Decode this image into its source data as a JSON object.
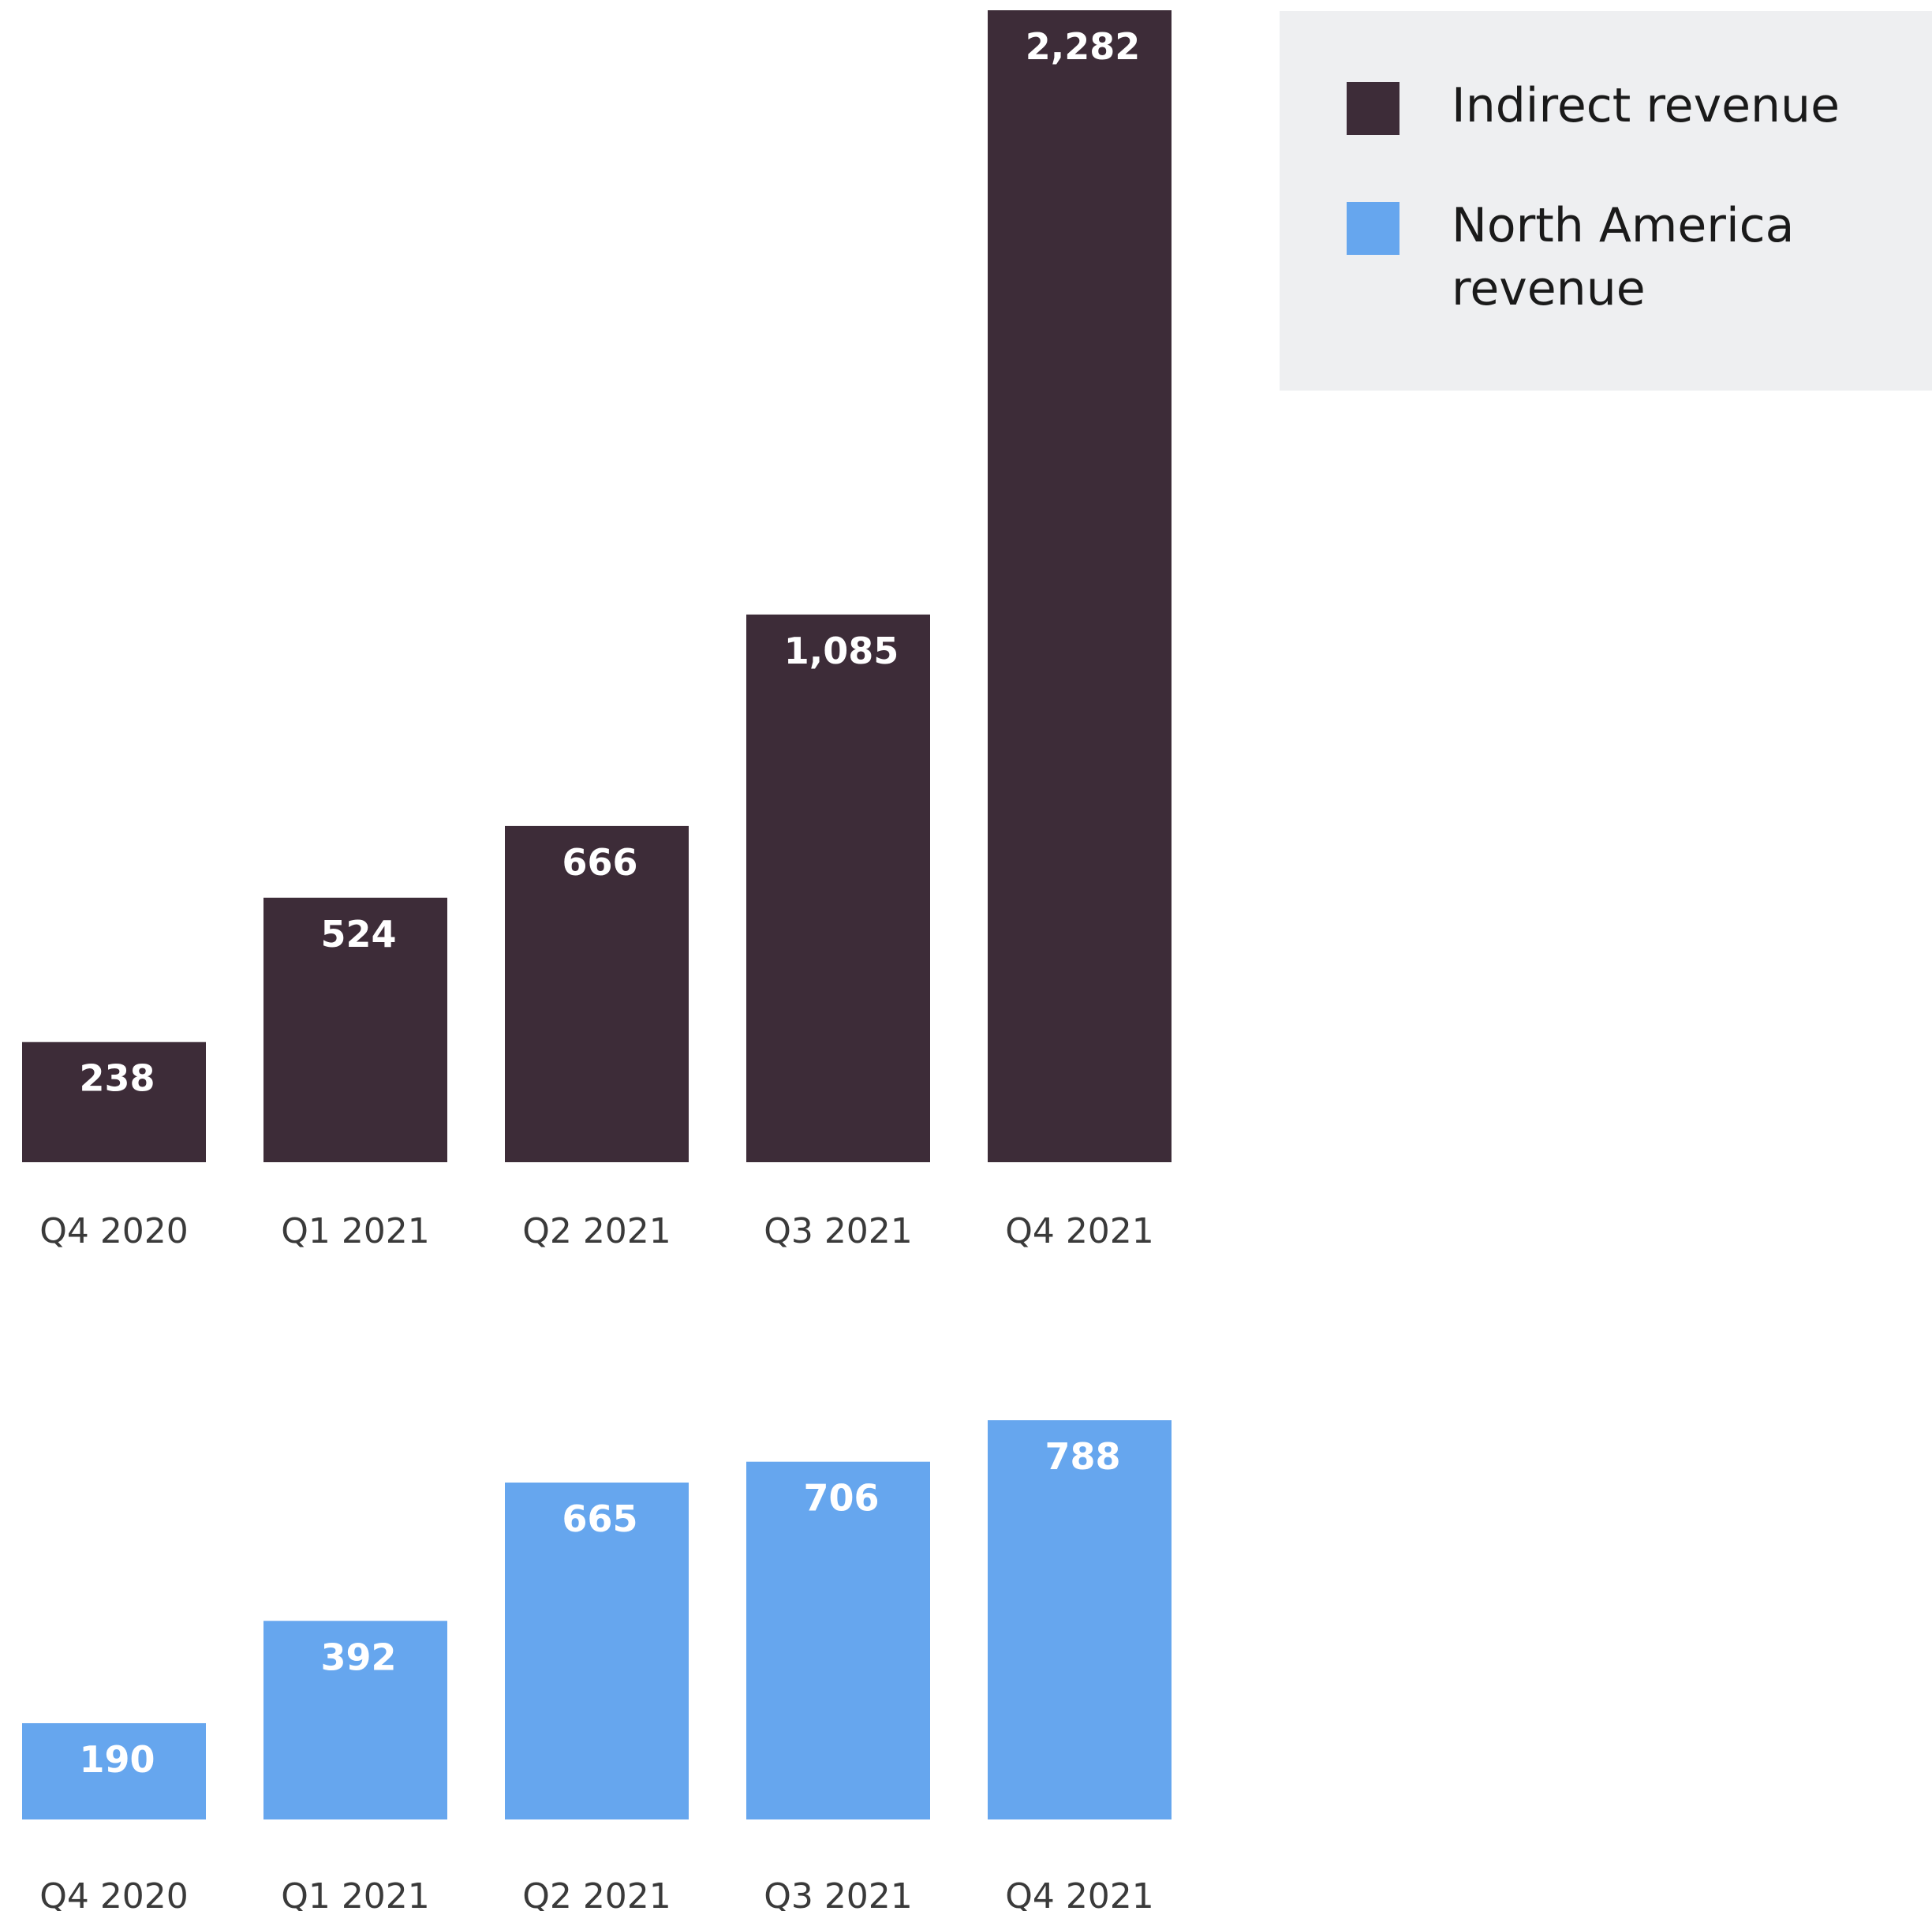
{
  "colors": {
    "indirect": "#3d2c38",
    "north_america": "#66a6ee",
    "legend_bg": "#eeeff1",
    "tick_text": "#3a3a3a",
    "bar_label": "#ffffff"
  },
  "legend": {
    "items": [
      {
        "label": "Indirect revenue",
        "color": "#3d2c38"
      },
      {
        "label": "North America revenue",
        "color": "#66a6ee"
      }
    ]
  },
  "chart_data": [
    {
      "type": "bar",
      "categories": [
        "Q4 2020",
        "Q1 2021",
        "Q2 2021",
        "Q3 2021",
        "Q4 2021"
      ],
      "series": [
        {
          "name": "Indirect revenue",
          "values": [
            238,
            524,
            666,
            1085,
            2282
          ],
          "data_labels": [
            "238",
            "524",
            "666",
            "1,085",
            "2,282"
          ],
          "color": "#3d2c38"
        }
      ],
      "ylim": [
        0,
        2282
      ],
      "grid": false
    },
    {
      "type": "bar",
      "categories": [
        "Q4 2020",
        "Q1 2021",
        "Q2 2021",
        "Q3 2021",
        "Q4 2021"
      ],
      "series": [
        {
          "name": "North America revenue",
          "values": [
            190,
            392,
            665,
            706,
            788
          ],
          "data_labels": [
            "190",
            "392",
            "665",
            "706",
            "788"
          ],
          "color": "#66a6ee"
        }
      ],
      "ylim": [
        0,
        800
      ],
      "grid": false
    }
  ]
}
